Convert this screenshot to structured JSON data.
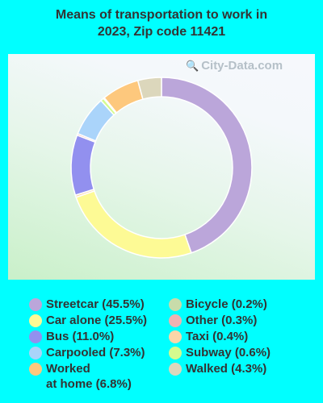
{
  "title_line1": "Means of transportation to work in",
  "title_line2": "2023, Zip code 11421",
  "watermark": "City-Data.com",
  "chart_data": {
    "type": "pie",
    "variant": "donut",
    "title": "Means of transportation to work in 2023, Zip code 11421",
    "legend_placement": "bottom",
    "slices": [
      {
        "label": "Streetcar (45.5%)",
        "name": "Streetcar",
        "value": 45.5,
        "color": "#bba6da"
      },
      {
        "label": "Car alone (25.5%)",
        "name": "Car alone",
        "value": 25.5,
        "color": "#fdfa95"
      },
      {
        "label": "Taxi (0.4%)",
        "name": "Taxi",
        "value": 0.4,
        "color": "#fbd6a8"
      },
      {
        "label": "Bus (11.0%)",
        "name": "Bus",
        "value": 11.0,
        "color": "#9290ef"
      },
      {
        "label": "Other (0.3%)",
        "name": "Other",
        "value": 0.3,
        "color": "#f0b2b2"
      },
      {
        "label": "Carpooled (7.3%)",
        "name": "Carpooled",
        "value": 7.3,
        "color": "#aad4fa"
      },
      {
        "label": "Subway (0.6%)",
        "name": "Subway",
        "value": 0.6,
        "color": "#d4fb8e"
      },
      {
        "label": "Bicycle (0.2%)",
        "name": "Bicycle",
        "value": 0.2,
        "color": "#c8dcaa"
      },
      {
        "label": "Worked at home (6.8%)",
        "name": "Worked at home",
        "value": 6.8,
        "color": "#fdc87d"
      },
      {
        "label": "Walked (4.3%)",
        "name": "Walked",
        "value": 4.3,
        "color": "#dcd7bc"
      }
    ]
  },
  "legend": {
    "left": [
      {
        "line1": "Streetcar (45.5%)",
        "line2": "",
        "color": "#bba6da"
      },
      {
        "line1": "Car alone (25.5%)",
        "line2": "",
        "color": "#fdfa95"
      },
      {
        "line1": "Bus (11.0%)",
        "line2": "",
        "color": "#9290ef"
      },
      {
        "line1": "Carpooled (7.3%)",
        "line2": "",
        "color": "#aad4fa"
      },
      {
        "line1": "Worked",
        "line2": "at home (6.8%)",
        "color": "#fdc87d"
      }
    ],
    "right": [
      {
        "line1": "Bicycle (0.2%)",
        "line2": "",
        "color": "#c8dcaa"
      },
      {
        "line1": "Other (0.3%)",
        "line2": "",
        "color": "#f0b2b2"
      },
      {
        "line1": "Taxi (0.4%)",
        "line2": "",
        "color": "#fbd6a8"
      },
      {
        "line1": "Subway (0.6%)",
        "line2": "",
        "color": "#d4fb8e"
      },
      {
        "line1": "Walked (4.3%)",
        "line2": "",
        "color": "#dcd7bc"
      }
    ]
  }
}
